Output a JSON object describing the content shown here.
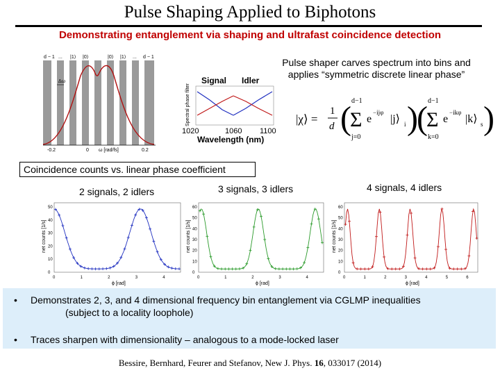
{
  "header": {
    "title": "Pulse Shaping Applied to Biphotons",
    "subtitle": "Demonstrating entanglement via shaping and ultrafast coincidence detection"
  },
  "spectrum_figure": {
    "bin_labels": [
      "d − 1",
      "...",
      "|1⟩",
      "|0⟩",
      "|0⟩",
      "|1⟩",
      "...",
      "d − 1"
    ],
    "tick_labels": [
      "-0.2",
      "0",
      "0.2"
    ],
    "axis_label": "ω [rad/fs]",
    "delta_label": "Δω"
  },
  "phase_figure": {
    "legend_signal": "Signal",
    "legend_idler": "Idler",
    "ylabel": "Spectral phase filter",
    "tick_labels": [
      "1020",
      "1060",
      "1100"
    ],
    "xlabel": "Wavelength (nm)"
  },
  "shaper_note": {
    "line1": "Pulse shaper carves spectrum into bins and",
    "line2": "applies “symmetric discrete linear phase”"
  },
  "equation": {
    "lhs": "|χ⟩ =",
    "frac_num": "1",
    "frac_den": "d",
    "sum_top": "d−1",
    "sum_bottom_j": "j=0",
    "sum_bottom_k": "k=0",
    "term_j": "e",
    "exp_j": "−ijφ",
    "ket_j": "|j⟩",
    "sub_i": "i",
    "term_k": "e",
    "exp_k": "−ikφ",
    "ket_k": "|k⟩",
    "sub_s": "s"
  },
  "callout": "Coincidence counts vs. linear phase coefficient",
  "plots": [
    {
      "caption": "2 signals, 2 idlers",
      "color": "#2030c0",
      "ylabel": "net counts [1/s]",
      "xlabel": "ϕ [rad]",
      "yticks": [
        "0",
        "10",
        "20",
        "30",
        "40",
        "50"
      ],
      "xticks": [
        "0",
        "1",
        "2",
        "3",
        "4"
      ]
    },
    {
      "caption": "3 signals, 3 idlers",
      "color": "#2a9a2a",
      "ylabel": "net counts [1/s]",
      "xlabel": "ϕ [rad]",
      "yticks": [
        "0",
        "10",
        "20",
        "30",
        "40",
        "50",
        "60"
      ],
      "xticks": [
        "0",
        "1",
        "2",
        "3",
        "4"
      ]
    },
    {
      "caption": "4 signals, 4 idlers",
      "color": "#c01818",
      "ylabel": "net counts [1/s]",
      "xlabel": "ϕ [rad]",
      "yticks": [
        "0",
        "10",
        "20",
        "30",
        "40",
        "50",
        "60"
      ],
      "xticks": [
        "0",
        "1",
        "2",
        "3",
        "4",
        "5",
        "6"
      ]
    }
  ],
  "bullets": [
    {
      "marker": "•",
      "text": "Demonstrates 2, 3, and 4 dimensional frequency bin entanglement via CGLMP inequalities",
      "cont": "(subject to a locality loophole)"
    },
    {
      "marker": "•",
      "text": "Traces sharpen with dimensionality – analogous to a mode-locked laser"
    }
  ],
  "citation": {
    "authors": "Bessire, Bernhard, Feurer and Stefanov, New J. Phys. ",
    "volume": "16",
    "rest": ", 033017 (2014)"
  }
}
